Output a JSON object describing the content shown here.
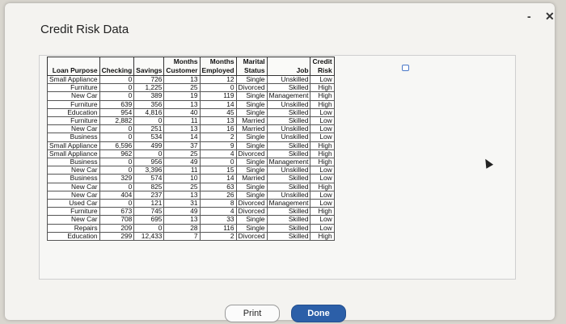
{
  "window": {
    "title": "Credit Risk Data",
    "minimize_glyph": "-",
    "close_glyph": "✕"
  },
  "table": {
    "headers": [
      [
        "",
        "Loan Purpose"
      ],
      [
        "",
        "Checking"
      ],
      [
        "",
        "Savings"
      ],
      [
        "Months",
        "Customer"
      ],
      [
        "Months",
        "Employed"
      ],
      [
        "Marital",
        "Status"
      ],
      [
        "",
        "Job"
      ],
      [
        "Credit",
        "Risk"
      ]
    ],
    "rows": [
      [
        "Small Appliance",
        "0",
        "726",
        "13",
        "12",
        "Single",
        "Unskilled",
        "Low"
      ],
      [
        "Furniture",
        "0",
        "1,225",
        "25",
        "0",
        "Divorced",
        "Skilled",
        "High"
      ],
      [
        "New Car",
        "0",
        "389",
        "19",
        "119",
        "Single",
        "Management",
        "High"
      ],
      [
        "Furniture",
        "639",
        "356",
        "13",
        "14",
        "Single",
        "Unskilled",
        "High"
      ],
      [
        "Education",
        "954",
        "4,816",
        "40",
        "45",
        "Single",
        "Skilled",
        "Low"
      ],
      [
        "Furniture",
        "2,882",
        "0",
        "11",
        "13",
        "Married",
        "Skilled",
        "Low"
      ],
      [
        "New Car",
        "0",
        "251",
        "13",
        "16",
        "Married",
        "Unskilled",
        "Low"
      ],
      [
        "Business",
        "0",
        "534",
        "14",
        "2",
        "Single",
        "Unskilled",
        "Low"
      ],
      [
        "Small Appliance",
        "6,596",
        "499",
        "37",
        "9",
        "Single",
        "Skilled",
        "High"
      ],
      [
        "Small Appliance",
        "962",
        "0",
        "25",
        "4",
        "Divorced",
        "Skilled",
        "High"
      ],
      [
        "Business",
        "0",
        "956",
        "49",
        "0",
        "Single",
        "Management",
        "High"
      ],
      [
        "New Car",
        "0",
        "3,396",
        "11",
        "15",
        "Single",
        "Unskilled",
        "Low"
      ],
      [
        "Business",
        "329",
        "574",
        "10",
        "14",
        "Married",
        "Skilled",
        "Low"
      ],
      [
        "New Car",
        "0",
        "825",
        "25",
        "63",
        "Single",
        "Skilled",
        "High"
      ],
      [
        "New Car",
        "404",
        "237",
        "13",
        "26",
        "Single",
        "Unskilled",
        "Low"
      ],
      [
        "Used Car",
        "0",
        "121",
        "31",
        "8",
        "Divorced",
        "Management",
        "Low"
      ],
      [
        "Furniture",
        "673",
        "745",
        "49",
        "4",
        "Divorced",
        "Skilled",
        "High"
      ],
      [
        "New Car",
        "708",
        "695",
        "13",
        "33",
        "Single",
        "Skilled",
        "Low"
      ],
      [
        "Repairs",
        "209",
        "0",
        "28",
        "116",
        "Single",
        "Skilled",
        "Low"
      ],
      [
        "Education",
        "299",
        "12,433",
        "7",
        "2",
        "Divorced",
        "Skilled",
        "High"
      ]
    ]
  },
  "buttons": {
    "print": "Print",
    "done": "Done"
  },
  "icons": {
    "copy": "copy-icon",
    "cursor": "mouse-cursor-icon"
  },
  "colors": {
    "done_button": "#2c5fa8",
    "copy_icon": "#4a78c8"
  }
}
